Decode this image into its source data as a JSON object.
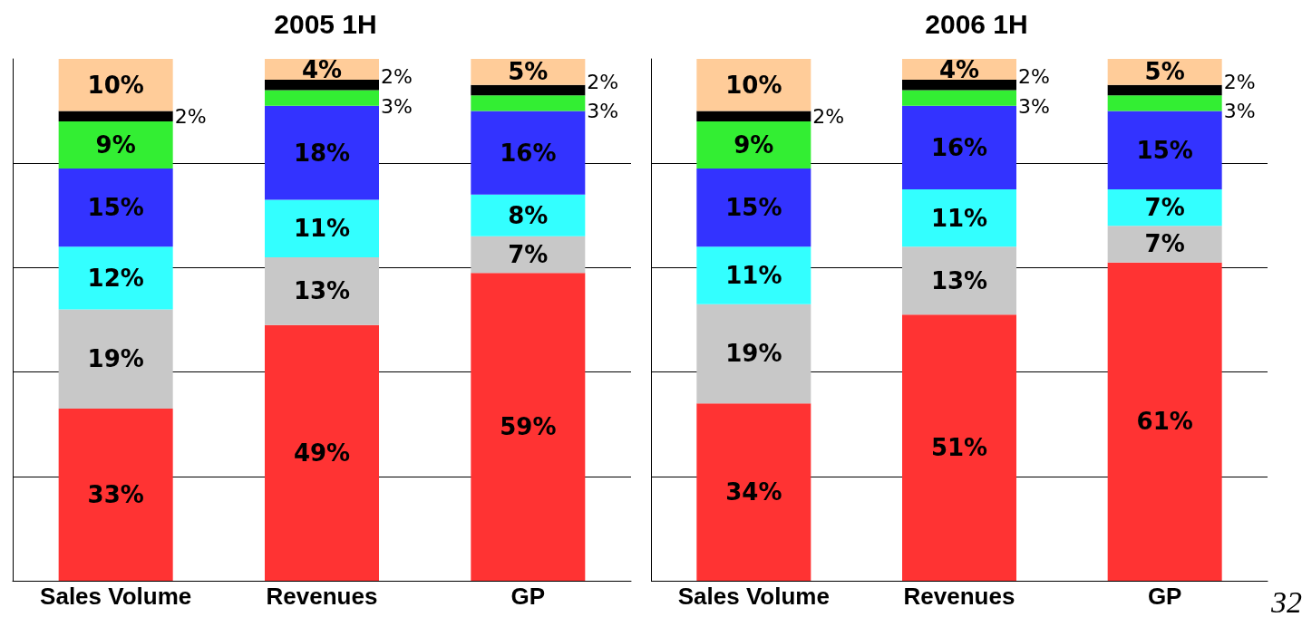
{
  "chart_data": [
    {
      "type": "bar",
      "title": "2005 1H",
      "categories": [
        "Sales Volume",
        "Revenues",
        "GP"
      ],
      "stacked": true,
      "ylim": [
        0,
        100
      ],
      "yticks": [
        {
          "value": 0,
          "label": null
        },
        {
          "value": 20,
          "label": null
        },
        {
          "value": 40,
          "label": null
        },
        {
          "value": 60,
          "label": null
        },
        {
          "value": 80,
          "label": null
        }
      ],
      "grid": "y",
      "tick_labels": "x",
      "series": [
        {
          "color": "#ff3333",
          "values": [
            33,
            49,
            59
          ],
          "value_labels": [
            "33%",
            "49%",
            "59%"
          ]
        },
        {
          "color": "#c8c8c8",
          "values": [
            19,
            13,
            7
          ],
          "value_labels": [
            "19%",
            "13%",
            "7%"
          ]
        },
        {
          "color": "#33ffff",
          "values": [
            12,
            11,
            8
          ],
          "value_labels": [
            "12%",
            "11%",
            "8%"
          ]
        },
        {
          "color": "#3333ff",
          "values": [
            15,
            18,
            16
          ],
          "value_labels": [
            "15%",
            "18%",
            "16%"
          ]
        },
        {
          "color": "#33ee33",
          "values": [
            9,
            3,
            3
          ],
          "value_labels": [
            "9%",
            "3%",
            "3%"
          ]
        },
        {
          "color": "#000000",
          "values": [
            2,
            2,
            2
          ],
          "value_labels": [
            "2%",
            "2%",
            "2%"
          ]
        },
        {
          "color": "#ffcc99",
          "values": [
            10,
            4,
            5
          ],
          "value_labels": [
            "10%",
            "4%",
            "5%"
          ]
        }
      ]
    },
    {
      "type": "bar",
      "title": "2006 1H",
      "categories": [
        "Sales Volume",
        "Revenues",
        "GP"
      ],
      "stacked": true,
      "ylim": [
        0,
        100
      ],
      "yticks": [
        {
          "value": 0,
          "label": null
        },
        {
          "value": 20,
          "label": null
        },
        {
          "value": 40,
          "label": null
        },
        {
          "value": 60,
          "label": null
        },
        {
          "value": 80,
          "label": null
        }
      ],
      "grid": "y",
      "tick_labels": "x",
      "annotations": [
        "32"
      ],
      "series": [
        {
          "color": "#ff3333",
          "values": [
            34,
            51,
            61
          ],
          "value_labels": [
            "34%",
            "51%",
            "61%"
          ]
        },
        {
          "color": "#c8c8c8",
          "values": [
            19,
            13,
            7
          ],
          "value_labels": [
            "19%",
            "13%",
            "7%"
          ]
        },
        {
          "color": "#33ffff",
          "values": [
            11,
            11,
            7
          ],
          "value_labels": [
            "11%",
            "11%",
            "7%"
          ]
        },
        {
          "color": "#3333ff",
          "values": [
            15,
            16,
            15
          ],
          "value_labels": [
            "15%",
            "16%",
            "15%"
          ]
        },
        {
          "color": "#33ee33",
          "values": [
            9,
            3,
            3
          ],
          "value_labels": [
            "9%",
            "3%",
            "3%"
          ]
        },
        {
          "color": "#000000",
          "values": [
            2,
            2,
            2
          ],
          "value_labels": [
            "2%",
            "2%",
            "2%"
          ]
        },
        {
          "color": "#ffcc99",
          "values": [
            10,
            4,
            5
          ],
          "value_labels": [
            "10%",
            "4%",
            "5%"
          ]
        }
      ]
    }
  ]
}
